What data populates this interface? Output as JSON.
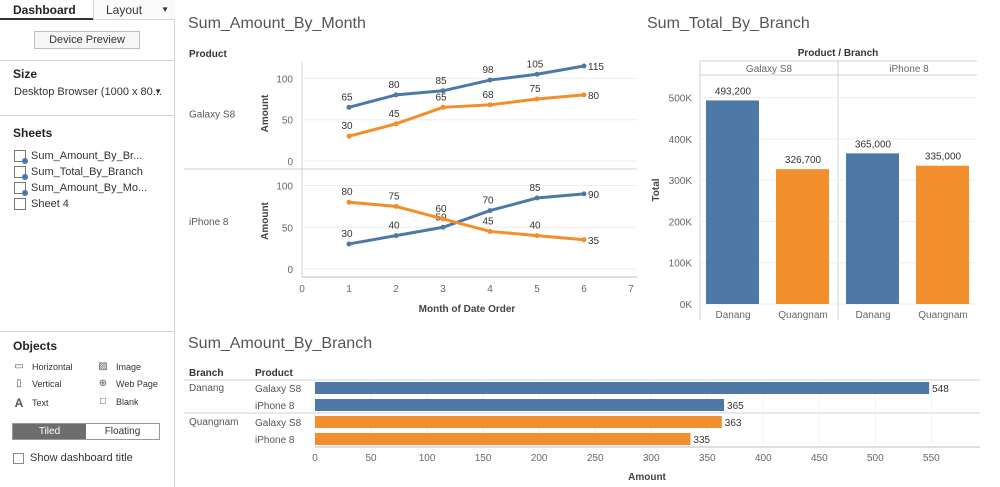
{
  "sidebar": {
    "tabs": {
      "dashboard": "Dashboard",
      "layout": "Layout"
    },
    "device_preview": "Device Preview",
    "size_title": "Size",
    "size_value": "Desktop Browser (1000 x 80...",
    "sheets_title": "Sheets",
    "sheets": [
      "Sum_Amount_By_Br...",
      "Sum_Total_By_Branch",
      "Sum_Amount_By_Mo...",
      "Sheet 4"
    ],
    "objects_title": "Objects",
    "objects": {
      "horizontal": "Horizontal",
      "image": "Image",
      "vertical": "Vertical",
      "web_page": "Web Page",
      "text": "Text",
      "blank": "Blank"
    },
    "tiled": "Tiled",
    "floating": "Floating",
    "show_title": "Show dashboard title"
  },
  "views": {
    "month_title": "Sum_Amount_By_Month",
    "total_title": "Sum_Total_By_Branch",
    "branch_title": "Sum_Amount_By_Branch"
  },
  "colors": {
    "blue": "#4e79a7",
    "orange": "#f28e2b"
  },
  "chart_data": [
    {
      "type": "line",
      "title": "Sum_Amount_By_Month",
      "row_header": "Product",
      "xlabel": "Month of Date Order",
      "ylabel": "Amount",
      "xlim": [
        0,
        7
      ],
      "ylim": [
        0,
        115
      ],
      "x_ticks": [
        0,
        1,
        2,
        3,
        4,
        5,
        6,
        7
      ],
      "y_ticks": [
        0,
        50,
        100
      ],
      "panels": [
        {
          "product": "Galaxy S8",
          "x": [
            1,
            2,
            3,
            4,
            5,
            6
          ],
          "series": [
            {
              "values": [
                65,
                80,
                85,
                98,
                105,
                115
              ],
              "color": "#4e79a7",
              "labels": [
                "65",
                "80",
                "85",
                "98",
                "105",
                "115"
              ]
            },
            {
              "values": [
                30,
                45,
                65,
                68,
                75,
                80
              ],
              "color": "#f28e2b",
              "labels": [
                "30",
                "45",
                "65",
                "68",
                "75",
                "80"
              ]
            }
          ]
        },
        {
          "product": "iPhone 8",
          "x": [
            1,
            2,
            3,
            4,
            5,
            6
          ],
          "series": [
            {
              "values": [
                30,
                40,
                50,
                70,
                85,
                90
              ],
              "color": "#4e79a7",
              "labels": [
                "30",
                "40",
                "50",
                "70",
                "85",
                "90"
              ]
            },
            {
              "values": [
                80,
                75,
                60,
                45,
                40,
                35
              ],
              "color": "#f28e2b",
              "labels": [
                "80",
                "75",
                "60",
                "45",
                "40",
                "35"
              ]
            }
          ]
        }
      ]
    },
    {
      "type": "bar",
      "title": "Sum_Total_By_Branch",
      "header": "Product / Branch",
      "ylabel": "Total",
      "ylim": [
        0,
        550000
      ],
      "y_ticks": [
        0,
        100000,
        200000,
        300000,
        400000,
        500000
      ],
      "y_tick_labels": [
        "0K",
        "100K",
        "200K",
        "300K",
        "400K",
        "500K"
      ],
      "groups": [
        {
          "product": "Galaxy S8",
          "branches": [
            "Danang",
            "Quangnam"
          ],
          "values": [
            493200,
            326700
          ],
          "labels": [
            "493,200",
            "326,700"
          ],
          "colors": [
            "#4e79a7",
            "#f28e2b"
          ]
        },
        {
          "product": "iPhone 8",
          "branches": [
            "Danang",
            "Quangnam"
          ],
          "values": [
            365000,
            335000
          ],
          "labels": [
            "365,000",
            "335,000"
          ],
          "colors": [
            "#4e79a7",
            "#f28e2b"
          ]
        }
      ]
    },
    {
      "type": "bar",
      "orientation": "horizontal",
      "title": "Sum_Amount_By_Branch",
      "row_headers": [
        "Branch",
        "Product"
      ],
      "xlabel": "Amount",
      "xlim": [
        0,
        580
      ],
      "x_ticks": [
        0,
        50,
        100,
        150,
        200,
        250,
        300,
        350,
        400,
        450,
        500,
        550
      ],
      "rows": [
        {
          "branch": "Danang",
          "product": "Galaxy S8",
          "value": 548,
          "color": "#4e79a7"
        },
        {
          "branch": "",
          "product": "iPhone 8",
          "value": 365,
          "color": "#4e79a7"
        },
        {
          "branch": "Quangnam",
          "product": "Galaxy S8",
          "value": 363,
          "color": "#f28e2b"
        },
        {
          "branch": "",
          "product": "iPhone 8",
          "value": 335,
          "color": "#f28e2b"
        }
      ]
    }
  ]
}
